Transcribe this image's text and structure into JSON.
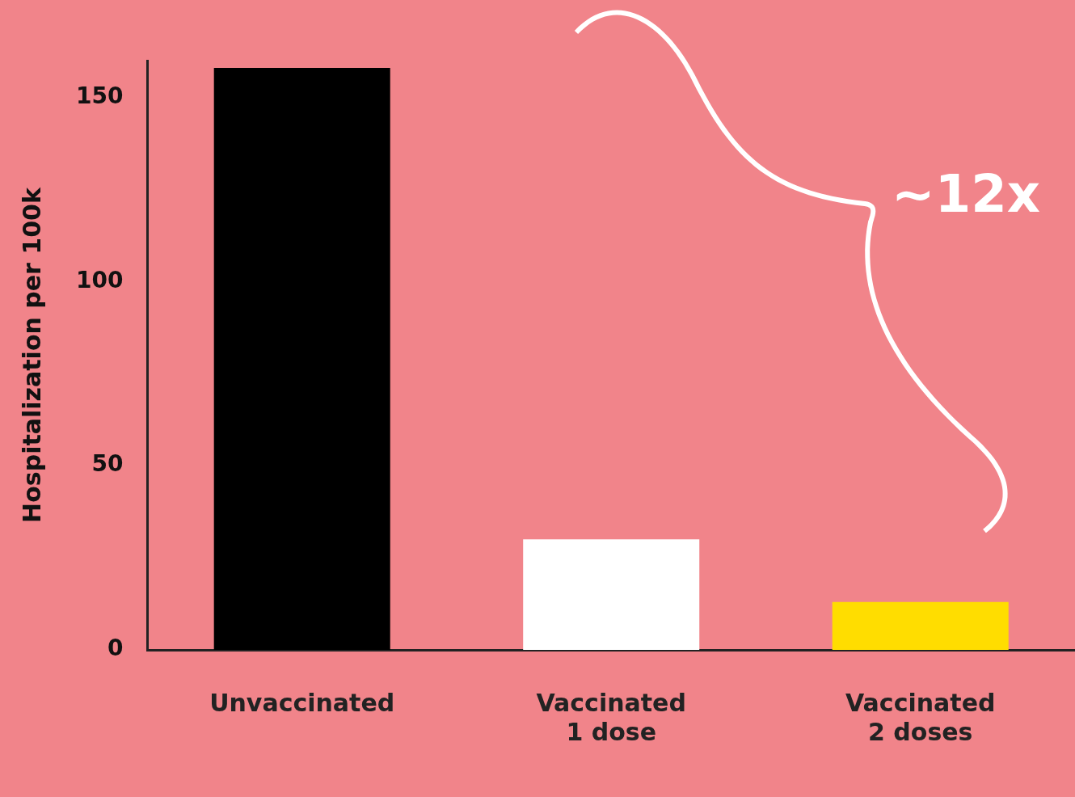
{
  "chart_data": {
    "type": "bar",
    "ylabel": "Hospitalization per 100k",
    "categories": [
      "Unvaccinated",
      "Vaccinated\n1 dose",
      "Vaccinated\n2 doses"
    ],
    "values": [
      158,
      30,
      13
    ],
    "colors": [
      "#000000",
      "#ffffff",
      "#ffdd00"
    ],
    "ylim": [
      0,
      160
    ],
    "yticks": [
      0,
      50,
      100,
      150
    ],
    "grid": false,
    "legend": false,
    "annotations": [
      "~12x"
    ]
  }
}
